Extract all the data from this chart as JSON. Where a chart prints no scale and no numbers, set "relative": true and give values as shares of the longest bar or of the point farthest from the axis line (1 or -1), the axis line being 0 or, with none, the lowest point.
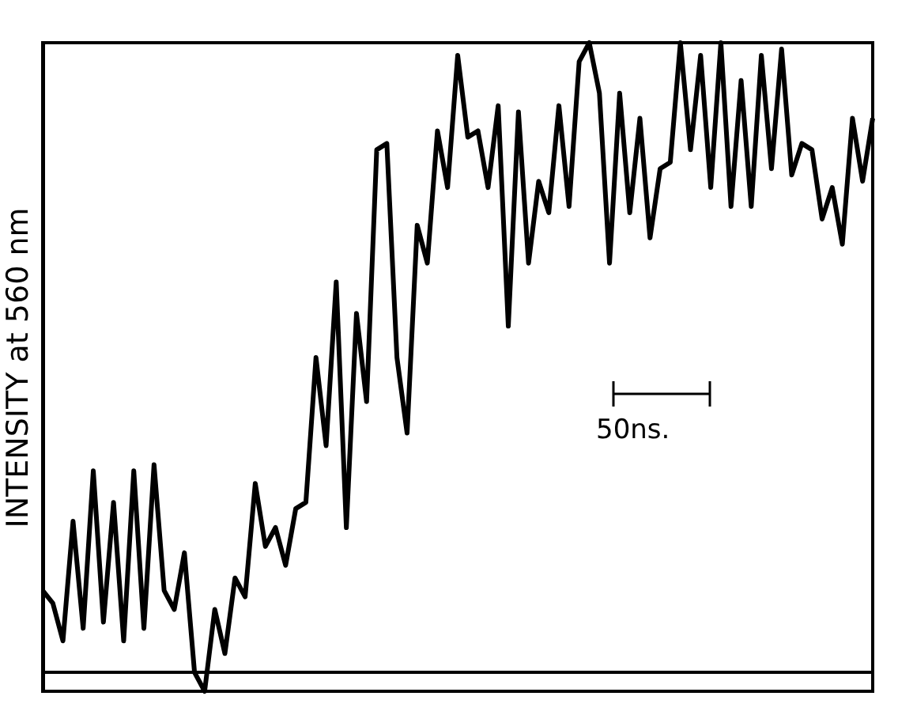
{
  "chart_data": {
    "type": "line",
    "relative": true,
    "ylabel": "INTENSITY at 560 nm",
    "annotations": [
      "50ns."
    ],
    "color": "#000000",
    "tick_labels": false,
    "grid": false,
    "categories": [
      null,
      null,
      null,
      null,
      null,
      null,
      null,
      null,
      null,
      null,
      null,
      null,
      null,
      null,
      null,
      null,
      null,
      null,
      null,
      null,
      null,
      null,
      null,
      null,
      null,
      null,
      null,
      null,
      null,
      null,
      null,
      null,
      null,
      null,
      null,
      null,
      null,
      null,
      null,
      null,
      null,
      null,
      null,
      null,
      null,
      null,
      null,
      null,
      null,
      null,
      null,
      null,
      null,
      null,
      null,
      null,
      null,
      null,
      null,
      null,
      null,
      null,
      null,
      null,
      null,
      null,
      null,
      null,
      null,
      null,
      null,
      null,
      null,
      null,
      null,
      null,
      null,
      null,
      null,
      null,
      null,
      null,
      null
    ],
    "values": [
      0.13,
      0.11,
      0.05,
      0.24,
      0.07,
      0.32,
      0.08,
      0.27,
      0.05,
      0.32,
      0.07,
      0.33,
      0.13,
      0.1,
      0.19,
      0.0,
      -0.03,
      0.1,
      0.03,
      0.15,
      0.12,
      0.3,
      0.2,
      0.23,
      0.17,
      0.26,
      0.27,
      0.5,
      0.36,
      0.62,
      0.23,
      0.57,
      0.43,
      0.83,
      0.84,
      0.5,
      0.38,
      0.71,
      0.65,
      0.86,
      0.77,
      0.98,
      0.85,
      0.86,
      0.77,
      0.9,
      0.55,
      0.89,
      0.65,
      0.78,
      0.73,
      0.9,
      0.74,
      0.97,
      1.0,
      0.92,
      0.65,
      0.92,
      0.73,
      0.88,
      0.69,
      0.8,
      0.81,
      1.0,
      0.83,
      0.98,
      0.77,
      1.0,
      0.74,
      0.94,
      0.74,
      0.98,
      0.8,
      0.99,
      0.79,
      0.84,
      0.83,
      0.72,
      0.77,
      0.68,
      0.88,
      0.78,
      0.88
    ]
  }
}
